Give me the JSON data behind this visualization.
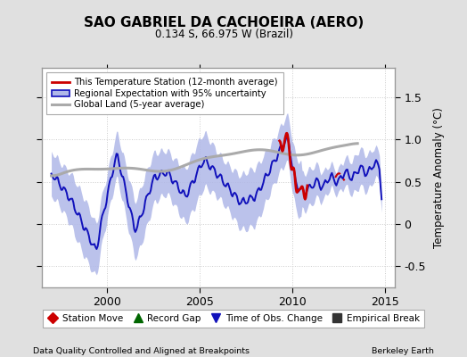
{
  "title": "SAO GABRIEL DA CACHOEIRA (AERO)",
  "subtitle": "0.134 S, 66.975 W (Brazil)",
  "ylabel": "Temperature Anomaly (°C)",
  "xlabel_left": "Data Quality Controlled and Aligned at Breakpoints",
  "xlabel_right": "Berkeley Earth",
  "xlim": [
    1996.5,
    2015.5
  ],
  "ylim": [
    -0.75,
    1.85
  ],
  "yticks": [
    -0.5,
    0,
    0.5,
    1.0,
    1.5
  ],
  "xticks": [
    2000,
    2005,
    2010,
    2015
  ],
  "bg_color": "#e0e0e0",
  "plot_bg_color": "#ffffff",
  "regional_line_color": "#1111bb",
  "regional_fill_color": "#b0b8e8",
  "station_line_color": "#cc0000",
  "global_line_color": "#aaaaaa",
  "legend1_labels": [
    "This Temperature Station (12-month average)",
    "Regional Expectation with 95% uncertainty",
    "Global Land (5-year average)"
  ],
  "legend2_labels": [
    "Station Move",
    "Record Gap",
    "Time of Obs. Change",
    "Empirical Break"
  ],
  "legend2_colors": [
    "#cc0000",
    "#006600",
    "#1111bb",
    "#333333"
  ],
  "legend2_markers": [
    "D",
    "^",
    "v",
    "s"
  ]
}
